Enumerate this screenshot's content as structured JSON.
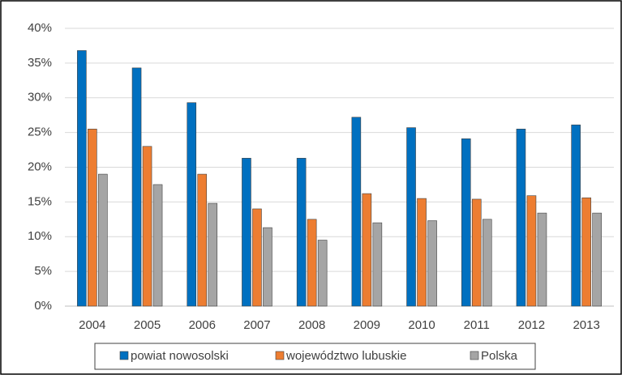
{
  "chart_data": {
    "type": "bar",
    "categories": [
      "2004",
      "2005",
      "2006",
      "2007",
      "2008",
      "2009",
      "2010",
      "2011",
      "2012",
      "2013"
    ],
    "series": [
      {
        "name": "powiat nowosolski",
        "color": "#0070c0",
        "values": [
          36.8,
          34.3,
          29.3,
          21.3,
          21.3,
          27.2,
          25.7,
          24.1,
          25.5,
          26.1
        ]
      },
      {
        "name": "województwo lubuskie",
        "color": "#ed7d31",
        "values": [
          25.5,
          23,
          19,
          14,
          12.5,
          16.2,
          15.5,
          15.4,
          15.9,
          15.6
        ]
      },
      {
        "name": "Polska",
        "color": "#a5a5a5",
        "values": [
          19,
          17.5,
          14.8,
          11.3,
          9.5,
          12,
          12.3,
          12.5,
          13.4,
          13.4
        ]
      }
    ],
    "ylim": [
      0,
      40
    ],
    "yticks": [
      {
        "value": 0,
        "label": "0%"
      },
      {
        "value": 5,
        "label": "5%"
      },
      {
        "value": 10,
        "label": "10%"
      },
      {
        "value": 15,
        "label": "15%"
      },
      {
        "value": 20,
        "label": "20%"
      },
      {
        "value": 25,
        "label": "25%"
      },
      {
        "value": 30,
        "label": "30%"
      },
      {
        "value": 35,
        "label": "35%"
      },
      {
        "value": 40,
        "label": "40%"
      }
    ],
    "grid": true,
    "legend": "bottom"
  }
}
